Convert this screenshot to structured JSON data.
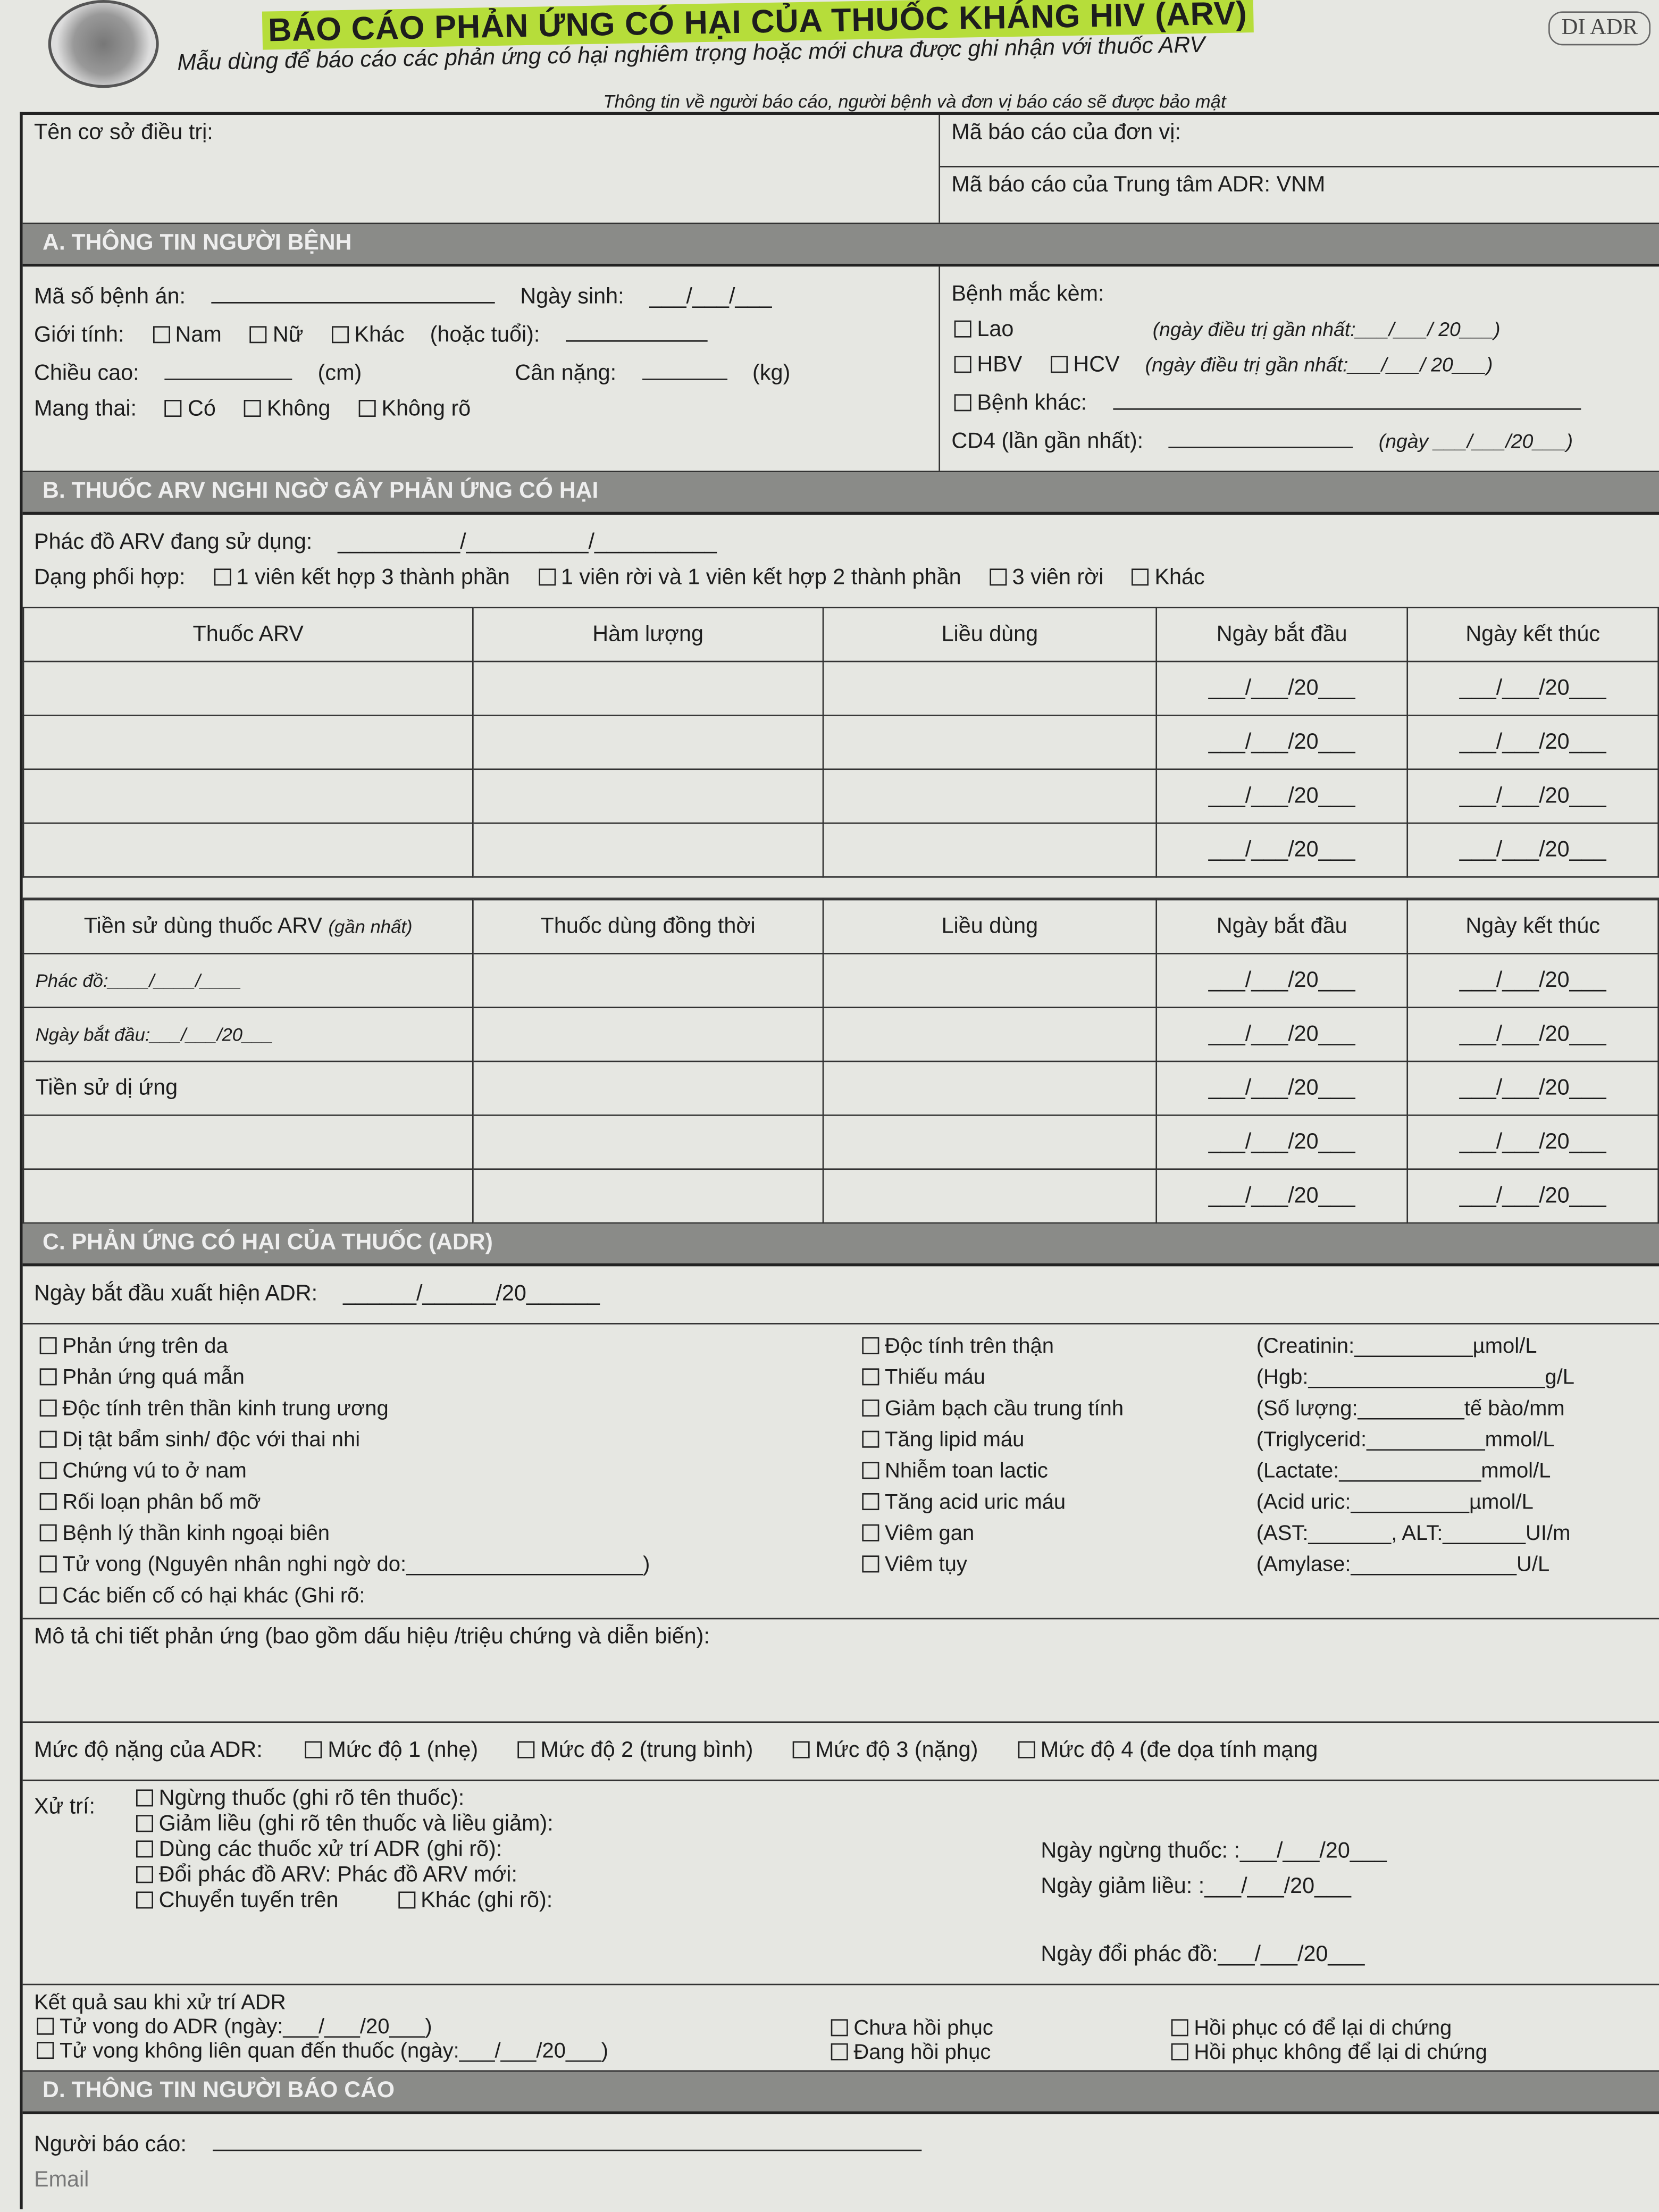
{
  "header": {
    "title": "BÁO CÁO PHẢN ỨNG CÓ HẠI CỦA THUỐC KHÁNG HIV (ARV)",
    "subtitle": "Mẫu dùng để báo cáo các phản ứng có hại nghiêm trọng hoặc mới chưa được ghi nhận với thuốc ARV",
    "logo_text": "DI ADR",
    "confidentiality": "Thông tin về người báo cáo, người bệnh và đơn vị báo cáo sẽ được bảo mật"
  },
  "top": {
    "facility": "Tên cơ sở điều trị:",
    "unit_code": "Mã báo cáo của đơn vị:",
    "center_code": "Mã báo cáo của Trung tâm ADR: VNM"
  },
  "date_blank": "___/___/20___",
  "sectionA": {
    "title": "A. THÔNG TIN NGƯỜI BỆNH",
    "record_no": "Mã số bệnh án:",
    "dob": "Ngày sinh:",
    "dob_blank": "___/___/___",
    "sex": "Giới tính:",
    "male": "Nam",
    "female": "Nữ",
    "other": "Khác",
    "age": "(hoặc tuổi):",
    "height": "Chiều cao:",
    "height_unit": "(cm)",
    "weight": "Cân nặng:",
    "weight_unit": "(kg)",
    "pregnant": "Mang thai:",
    "yes": "Có",
    "no": "Không",
    "unknown": "Không rõ",
    "comorbid": "Bệnh mắc kèm:",
    "tb": "Lao",
    "hbv": "HBV",
    "hcv": "HCV",
    "latest_tx": "(ngày điều trị gần nhất:___/___/ 20___)",
    "other_disease": "Bệnh khác:",
    "cd4": "CD4 (lần gần nhất):",
    "cd4_date": "(ngày ___/___/20___)"
  },
  "sectionB": {
    "title": "B. THUỐC ARV NGHI NGỜ GÂY PHẢN ỨNG CÓ HẠI",
    "regimen": "Phác đồ ARV đang sử dụng:",
    "regimen_blank": "__________/__________/__________",
    "combo": "Dạng phối hợp:",
    "combo_options": [
      "1 viên kết hợp 3 thành phần",
      "1 viên rời và 1 viên kết hợp 2 thành phần",
      "3 viên rời",
      "Khác"
    ],
    "drug_headers": [
      "Thuốc ARV",
      "Hàm lượng",
      "Liều dùng",
      "Ngày bắt đầu",
      "Ngày kết thúc"
    ],
    "history_title": "Tiền sử dùng thuốc ARV",
    "history_note": "(gần nhất)",
    "history_regimen": "Phác đồ:____/____/____",
    "history_start": "Ngày bắt đầu:___/___/20___",
    "allergy": "Tiền sử dị ứng",
    "concomitant_headers": [
      "Thuốc dùng đồng thời",
      "Liều dùng",
      "Ngày bắt đầu",
      "Ngày kết thúc"
    ]
  },
  "sectionC": {
    "title": "C. PHẢN ỨNG CÓ HẠI CỦA THUỐC (ADR)",
    "onset": "Ngày bắt đầu xuất hiện ADR:",
    "onset_blank": "______/______/20______",
    "left_items": [
      "Phản ứng trên da",
      "Phản ứng quá mẫn",
      "Độc tính trên thần kinh trung ương",
      "Dị tật bẩm sinh/ độc với thai nhi",
      "Chứng vú to ở nam",
      "Rối loạn phân bố mỡ",
      "Bệnh lý thần kinh ngoại biên",
      "Tử vong (Nguyên nhân nghi ngờ do:____________________)",
      "Các biến cố có hại khác  (Ghi rõ:"
    ],
    "mid_items": [
      "Độc tính trên thận",
      "Thiếu máu",
      "Giảm bạch cầu trung tính",
      "Tăng lipid máu",
      "Nhiễm toan lactic",
      "Tăng acid uric máu",
      "Viêm gan",
      "Viêm tụy"
    ],
    "lab_items": [
      "(Creatinin:__________µmol/L",
      "(Hgb:____________________g/L",
      "(Số lượng:_________tế bào/mm",
      "(Triglycerid:__________mmol/L",
      "(Lactate:____________mmol/L",
      "(Acid uric:__________µmol/L",
      "(AST:_______, ALT:_______UI/m",
      "(Amylase:______________U/L"
    ],
    "description": "Mô tả chi tiết phản ứng (bao gồm dấu hiệu /triệu chứng và diễn biến):",
    "severity": "Mức độ nặng của ADR:",
    "severity_levels": [
      "Mức độ 1 (nhẹ)",
      "Mức độ 2 (trung bình)",
      "Mức độ 3 (nặng)",
      "Mức độ 4 (đe dọa tính mạng"
    ],
    "management": "Xử trí:",
    "management_items": [
      "Ngừng thuốc (ghi rõ tên thuốc):",
      "Giảm liều (ghi rõ tên thuốc và liều giảm):",
      "Dùng các thuốc xử trí ADR (ghi rõ):",
      "Đổi phác đồ ARV:   Phác đồ ARV mới:",
      "Chuyển tuyến trên"
    ],
    "other_specify": "Khác (ghi rõ):",
    "stop_date": "Ngày ngừng thuốc: :___/___/20___",
    "reduce_date": "Ngày giảm liều: :___/___/20___",
    "switch_date": "Ngày đổi phác đồ:___/___/20___",
    "outcome": "Kết quả sau khi xử trí ADR",
    "outcomes": [
      "Tử vong do ADR (ngày:___/___/20___)",
      "Tử vong không liên quan đến thuốc (ngày:___/___/20___)",
      "Chưa hồi phục",
      "Đang hồi phục",
      "Hồi phục có để lại di chứng",
      "Hồi phục không để lại di chứng"
    ]
  },
  "sectionD": {
    "title": "D. THÔNG TIN NGƯỜI BÁO CÁO",
    "reporter": "Người báo cáo:",
    "email": "Email"
  }
}
